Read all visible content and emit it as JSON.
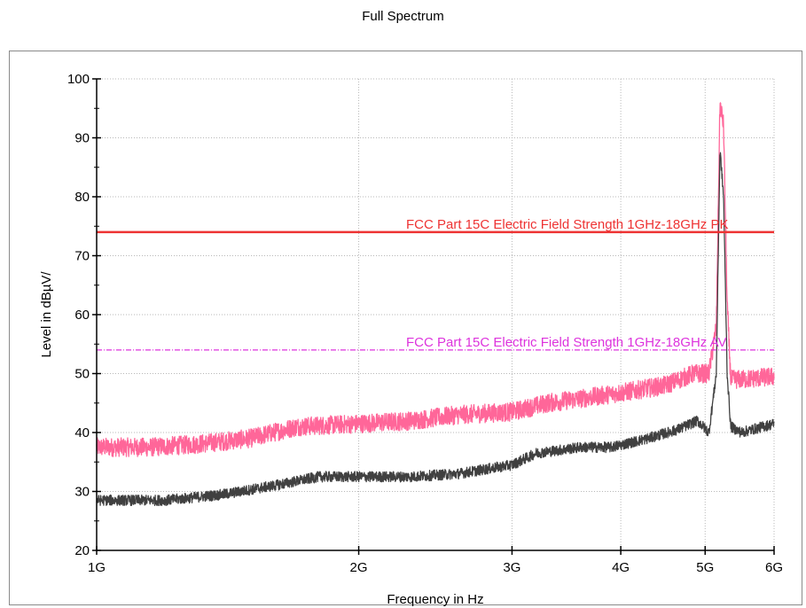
{
  "chart_data": {
    "type": "line",
    "title": "Full Spectrum",
    "xlabel": "Frequency in Hz",
    "ylabel": "Level in dBµV/",
    "x_scale": "log",
    "xlim": [
      1000000000,
      6000000000
    ],
    "ylim": [
      20,
      100
    ],
    "grid": true,
    "x_ticks": [
      {
        "value": 1000000000,
        "label": "1G"
      },
      {
        "value": 2000000000,
        "label": "2G"
      },
      {
        "value": 3000000000,
        "label": "3G"
      },
      {
        "value": 4000000000,
        "label": "4G"
      },
      {
        "value": 5000000000,
        "label": "5G"
      },
      {
        "value": 6000000000,
        "label": "6G"
      }
    ],
    "y_ticks": [
      {
        "value": 20,
        "label": "20"
      },
      {
        "value": 30,
        "label": "30"
      },
      {
        "value": 40,
        "label": "40"
      },
      {
        "value": 50,
        "label": "50"
      },
      {
        "value": 60,
        "label": "60"
      },
      {
        "value": 70,
        "label": "70"
      },
      {
        "value": 80,
        "label": "80"
      },
      {
        "value": 90,
        "label": "90"
      },
      {
        "value": 100,
        "label": "100"
      }
    ],
    "limits": [
      {
        "label": "FCC Part 15C Electric Field Strength 1GHz-18GHz PK",
        "value": 74,
        "color": "#ee3333",
        "style": "solid"
      },
      {
        "label": "FCC Part 15C Electric Field Strength 1GHz-18GHz AV",
        "value": 54,
        "color": "#dd33dd",
        "style": "dashdot"
      }
    ],
    "series": [
      {
        "color": "#ff6699",
        "noise": 1.6,
        "points": [
          [
            1000000000,
            37.5
          ],
          [
            1150000000,
            37.5
          ],
          [
            1300000000,
            38.0
          ],
          [
            1500000000,
            39.0
          ],
          [
            1700000000,
            41.0
          ],
          [
            2000000000,
            41.5
          ],
          [
            2300000000,
            42.0
          ],
          [
            2600000000,
            43.0
          ],
          [
            3000000000,
            43.5
          ],
          [
            3300000000,
            45.0
          ],
          [
            3700000000,
            46.0
          ],
          [
            4100000000,
            47.0
          ],
          [
            4500000000,
            48.0
          ],
          [
            4850000000,
            50.0
          ],
          [
            5050000000,
            50.0
          ],
          [
            5150000000,
            58.0
          ],
          [
            5200000000,
            96.0
          ],
          [
            5250000000,
            92.0
          ],
          [
            5300000000,
            62.0
          ],
          [
            5350000000,
            49.0
          ],
          [
            5500000000,
            49.0
          ],
          [
            6000000000,
            49.5
          ]
        ]
      },
      {
        "color": "#404040",
        "noise": 0.9,
        "points": [
          [
            1000000000,
            28.5
          ],
          [
            1200000000,
            28.5
          ],
          [
            1400000000,
            29.5
          ],
          [
            1600000000,
            31.0
          ],
          [
            1800000000,
            32.5
          ],
          [
            2000000000,
            32.5
          ],
          [
            2300000000,
            32.5
          ],
          [
            2600000000,
            33.0
          ],
          [
            3000000000,
            34.5
          ],
          [
            3200000000,
            36.5
          ],
          [
            3600000000,
            37.5
          ],
          [
            3900000000,
            37.5
          ],
          [
            4300000000,
            39.0
          ],
          [
            4650000000,
            40.5
          ],
          [
            4900000000,
            42.0
          ],
          [
            5050000000,
            40.0
          ],
          [
            5150000000,
            50.0
          ],
          [
            5200000000,
            88.0
          ],
          [
            5250000000,
            80.0
          ],
          [
            5300000000,
            50.0
          ],
          [
            5350000000,
            41.0
          ],
          [
            5500000000,
            40.0
          ],
          [
            6000000000,
            41.5
          ]
        ]
      }
    ]
  }
}
